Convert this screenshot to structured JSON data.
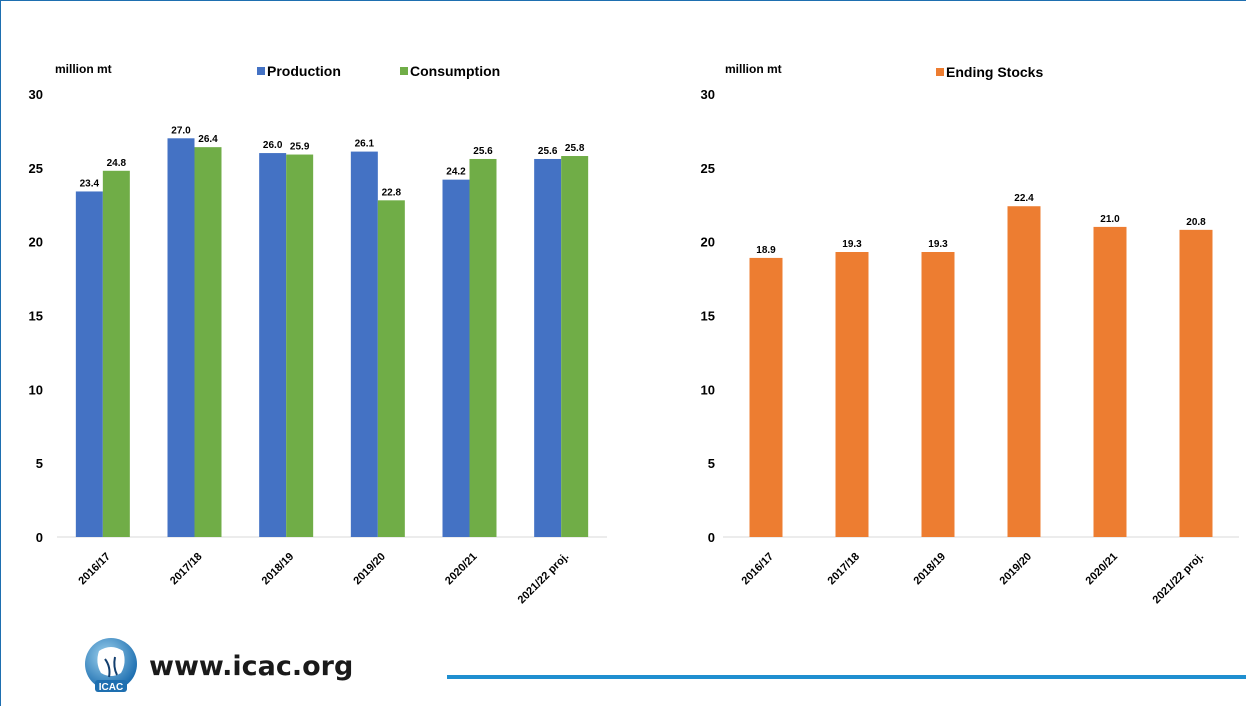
{
  "chart_data": [
    {
      "type": "bar",
      "unit_label": "million mt",
      "categories": [
        "2016/17",
        "2017/18",
        "2018/19",
        "2019/20",
        "2020/21",
        "2021/22 proj."
      ],
      "series": [
        {
          "name": "Production",
          "color": "#4472c4",
          "values": [
            23.4,
            27.0,
            26.0,
            26.1,
            24.2,
            25.6
          ],
          "labels": [
            "23.4",
            "27.0",
            "26.0",
            "26.1",
            "24.2",
            "25.6"
          ]
        },
        {
          "name": "Consumption",
          "color": "#70ad47",
          "values": [
            24.8,
            26.4,
            25.9,
            22.8,
            25.6,
            25.8
          ],
          "labels": [
            "24.8",
            "26.4",
            "25.9",
            "22.8",
            "25.6",
            "25.8"
          ]
        }
      ],
      "ylim": [
        0,
        30
      ],
      "yticks": [
        "0",
        "5",
        "10",
        "15",
        "20",
        "25",
        "30"
      ],
      "legend": "top",
      "grid": false
    },
    {
      "type": "bar",
      "unit_label": "million mt",
      "categories": [
        "2016/17",
        "2017/18",
        "2018/19",
        "2019/20",
        "2020/21",
        "2021/22 proj."
      ],
      "series": [
        {
          "name": "Ending Stocks",
          "color": "#ed7d31",
          "values": [
            18.9,
            19.3,
            19.3,
            22.4,
            21.0,
            20.8
          ],
          "labels": [
            "18.9",
            "19.3",
            "19.3",
            "22.4",
            "21.0",
            "20.8"
          ]
        }
      ],
      "ylim": [
        0,
        30
      ],
      "yticks": [
        "0",
        "5",
        "10",
        "15",
        "20",
        "25",
        "30"
      ],
      "legend": "top",
      "grid": false
    }
  ],
  "footer": {
    "url": "www.icac.org",
    "logo_text": "ICAC",
    "line_color": "#1f8fd0"
  }
}
